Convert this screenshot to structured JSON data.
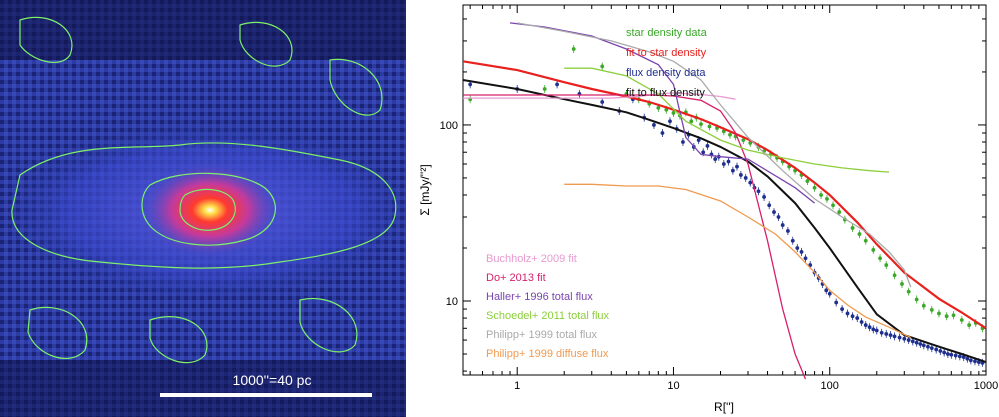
{
  "image_panel": {
    "scale_bar_label": "1000''=40 pc",
    "colors": {
      "background": "#2a3a9e",
      "contour": "#7ef06a",
      "core": "#ff3a2e",
      "center": "#ffffff"
    }
  },
  "chart_data": {
    "type": "line",
    "title": "",
    "xlabel": "R['']",
    "ylabel": "Σ [mJy/''²]",
    "xscale": "log",
    "yscale": "log",
    "xlim": [
      0.45,
      1000
    ],
    "ylim": [
      3.8,
      480
    ],
    "x_ticks": [
      1,
      10,
      100,
      1000
    ],
    "x_tick_labels": [
      "1",
      "10",
      "100",
      "1000"
    ],
    "y_ticks": [
      10,
      100
    ],
    "y_tick_labels": [
      "10",
      "100"
    ],
    "legend_top": [
      {
        "label": "star density data",
        "color": "#3aa828"
      },
      {
        "label": "fit to star density",
        "color": "#e8201e"
      },
      {
        "label": "flux density data",
        "color": "#1f2f8f"
      },
      {
        "label": "fit to flux density",
        "color": "#111111"
      }
    ],
    "legend_bottom": [
      {
        "label": "Buchholz+ 2009 fit",
        "color": "#e79ad0"
      },
      {
        "label": "Do+ 2013 fit",
        "color": "#d8206a"
      },
      {
        "label": "Haller+ 1996 total flux",
        "color": "#7a44b0"
      },
      {
        "label": "Schoedel+ 2011 total flux",
        "color": "#8ccf3c"
      },
      {
        "label": "Philipp+ 1999 total flux",
        "color": "#aaaaaa"
      },
      {
        "label": "Philipp+ 1999 diffuse flux",
        "color": "#f09a50"
      }
    ],
    "series": [
      {
        "name": "fit to star density",
        "kind": "line",
        "color": "#e8201e",
        "width": 2.2,
        "x": [
          0.45,
          1,
          2,
          3,
          5,
          7,
          10,
          15,
          20,
          30,
          40,
          60,
          80,
          100,
          150,
          200,
          300,
          500,
          700,
          1000
        ],
        "y": [
          230,
          205,
          175,
          160,
          145,
          135,
          122,
          108,
          97,
          83,
          72,
          57,
          47,
          40,
          28,
          21,
          14.5,
          10.3,
          8.6,
          7.0
        ]
      },
      {
        "name": "fit to flux density",
        "kind": "line",
        "color": "#111111",
        "width": 2.0,
        "x": [
          0.45,
          1,
          2,
          3,
          5,
          7,
          10,
          15,
          20,
          30,
          40,
          60,
          80,
          100,
          150,
          200,
          300,
          500,
          700,
          1000
        ],
        "y": [
          180,
          160,
          140,
          130,
          118,
          107,
          96,
          84,
          75,
          62,
          51,
          36,
          26,
          20,
          12,
          8.4,
          6.4,
          5.5,
          5.0,
          4.5
        ]
      },
      {
        "name": "Buchholz+ 2009 fit",
        "kind": "line",
        "color": "#e79ad0",
        "width": 1.3,
        "x": [
          0.45,
          1,
          2,
          4,
          6,
          8,
          10,
          15,
          20,
          25
        ],
        "y": [
          142,
          142,
          142,
          142,
          145,
          150,
          152,
          149,
          145,
          140
        ]
      },
      {
        "name": "Do+ 2013 fit",
        "kind": "line",
        "color": "#d8206a",
        "width": 1.3,
        "x": [
          0.45,
          1,
          2,
          4,
          7,
          10,
          15,
          20,
          25,
          30,
          40,
          50,
          60,
          70
        ],
        "y": [
          148,
          148,
          148,
          148,
          148,
          146,
          138,
          120,
          90,
          60,
          22,
          9,
          5,
          3.6
        ]
      },
      {
        "name": "Haller+ 1996 total flux",
        "kind": "line",
        "color": "#7a44b0",
        "width": 1.3,
        "x": [
          0.9,
          1.5,
          3,
          5,
          8,
          10,
          12,
          15,
          20,
          30,
          60,
          80
        ],
        "y": [
          380,
          360,
          320,
          270,
          220,
          170,
          85,
          68,
          66,
          64,
          44,
          36
        ]
      },
      {
        "name": "Schoedel+ 2011 total flux",
        "kind": "line",
        "color": "#8ccf3c",
        "width": 1.3,
        "x": [
          2,
          3,
          5,
          8,
          12,
          20,
          30,
          50,
          80,
          120,
          180,
          240
        ],
        "y": [
          210,
          210,
          190,
          150,
          105,
          82,
          72,
          65,
          60,
          57,
          55,
          54
        ]
      },
      {
        "name": "Philipp+ 1999 total flux",
        "kind": "line",
        "color": "#aaaaaa",
        "width": 1.3,
        "x": [
          1,
          2,
          4,
          7,
          10,
          15,
          20,
          30,
          50,
          80,
          120,
          180,
          240,
          300,
          330
        ],
        "y": [
          380,
          340,
          300,
          260,
          230,
          180,
          130,
          85,
          55,
          38,
          30,
          24,
          19,
          15,
          12
        ]
      },
      {
        "name": "Philipp+ 1999 diffuse flux",
        "kind": "line",
        "color": "#f09a50",
        "width": 1.3,
        "x": [
          2,
          3,
          5,
          8,
          12,
          20,
          30,
          45,
          60,
          80,
          100,
          130,
          170,
          240,
          330
        ],
        "y": [
          46,
          46,
          45,
          45,
          43,
          37,
          30,
          24,
          19,
          14.5,
          11.5,
          9.5,
          8.1,
          7.1,
          6.2
        ]
      },
      {
        "name": "star density data",
        "kind": "points",
        "color": "#3aa828",
        "x": [
          0.5,
          1.5,
          2.3,
          3.5,
          5,
          6,
          7,
          8,
          9,
          10,
          11,
          12,
          13,
          14,
          15,
          17,
          19,
          21,
          23,
          25,
          28,
          31,
          35,
          38,
          42,
          46,
          50,
          55,
          60,
          66,
          72,
          80,
          88,
          96,
          105,
          115,
          125,
          140,
          155,
          170,
          190,
          210,
          230,
          260,
          290,
          320,
          360,
          400,
          450,
          500,
          560,
          620,
          700,
          780,
          860,
          950
        ],
        "y": [
          140,
          160,
          270,
          215,
          150,
          140,
          132,
          125,
          122,
          117,
          113,
          118,
          105,
          110,
          101,
          98,
          96,
          92,
          88,
          86,
          82,
          79,
          75,
          71,
          68,
          65,
          62,
          58,
          55,
          52,
          48,
          44,
          40,
          38,
          35,
          32,
          29,
          26,
          24,
          22,
          19.5,
          17.5,
          16,
          14,
          12.5,
          11.3,
          10.2,
          9.4,
          8.9,
          8.5,
          8.2,
          8.3,
          7.8,
          7.3,
          7.5,
          7.0
        ]
      },
      {
        "name": "flux density data",
        "kind": "points",
        "color": "#1f2f8f",
        "x": [
          0.5,
          1,
          1.8,
          2.5,
          3.5,
          4.5,
          5.5,
          6.5,
          7.5,
          8.5,
          9.5,
          10.5,
          11.5,
          12.5,
          13.5,
          14.5,
          15.5,
          16.5,
          17.5,
          18.5,
          19.5,
          21,
          22.5,
          24,
          25.5,
          27,
          29,
          31,
          33,
          35,
          38,
          41,
          44,
          47,
          50,
          54,
          58,
          62,
          66,
          70,
          75,
          80,
          85,
          90,
          95,
          100,
          110,
          120,
          130,
          140,
          150,
          160,
          170,
          180,
          190,
          200,
          215,
          230,
          245,
          260,
          280,
          300,
          320,
          340,
          360,
          380,
          400,
          425,
          450,
          480,
          510,
          540,
          570,
          600,
          640,
          680,
          720,
          760,
          800,
          850,
          900,
          950
        ],
        "y": [
          170,
          160,
          170,
          150,
          135,
          120,
          140,
          110,
          100,
          90,
          105,
          95,
          80,
          88,
          75,
          82,
          70,
          76,
          68,
          64,
          66,
          60,
          62,
          55,
          58,
          52,
          50,
          47,
          44,
          42,
          39,
          35,
          32,
          30,
          27,
          25,
          22,
          20,
          19,
          17.5,
          16,
          14.5,
          13.5,
          12.5,
          11.5,
          11,
          9.8,
          9,
          8.5,
          8.2,
          8.0,
          7.6,
          7.3,
          7.1,
          6.9,
          6.8,
          6.6,
          6.5,
          6.4,
          6.3,
          6.2,
          6.1,
          6.0,
          5.9,
          5.8,
          5.7,
          5.6,
          5.5,
          5.4,
          5.3,
          5.2,
          5.1,
          5.0,
          4.95,
          4.9,
          4.85,
          4.8,
          4.7,
          4.6,
          4.55,
          4.5,
          4.45
        ]
      }
    ]
  }
}
